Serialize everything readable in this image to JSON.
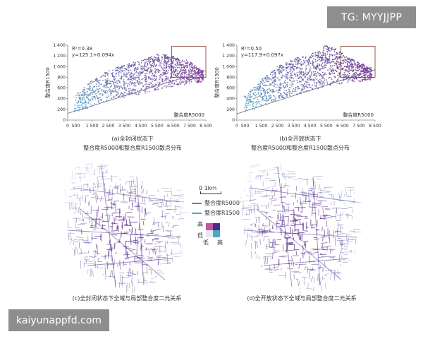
{
  "watermarks": {
    "tg": "TG: MYYJJPP",
    "site": "kaiyunappfd.com"
  },
  "captions": {
    "a_line1": "(a)全封闭状态下",
    "a_line2": "整合度R5000和整合度R1500散点分布",
    "b_line1": "(b)全开放状态下",
    "b_line2": "整合度R5000和整合度R1500散点分布",
    "c": "(c)全封闭状态下全域与局部整合度二元关系",
    "d": "(d)全开放状态下全域与局部整合度二元关系"
  },
  "legend": {
    "scale": "0   1km",
    "r5000": "整合度R5000",
    "r1500": "整合度R1500",
    "high": "高",
    "low": "低",
    "low_x": "低",
    "high_x": "高",
    "colors": {
      "r5000": "#c2569f",
      "r1500": "#4aa8c6",
      "dark": "#4a2d8e",
      "light": "#e8e8f2"
    }
  },
  "chart_data": [
    {
      "type": "scatter",
      "id": "a",
      "xlabel": "整合度R5000",
      "ylabel": "整合度R1500",
      "xlim": [
        0,
        8500
      ],
      "ylim": [
        0,
        1400
      ],
      "xticks": [
        0,
        500,
        1500,
        2500,
        3500,
        4500,
        5500,
        6500,
        7500,
        8500
      ],
      "xtick_labels": [
        "0",
        "500",
        "1 500",
        "2 500",
        "3 500",
        "4 500",
        "5 500",
        "6 500",
        "7 500",
        "8 500"
      ],
      "yticks": [
        0,
        200,
        400,
        600,
        800,
        1000,
        1200,
        1400
      ],
      "ytick_labels": [
        "0",
        "200",
        "400",
        "600",
        "800",
        "1 000",
        "1 200",
        "1 400"
      ],
      "r2": "R²=0.38",
      "equation": "y=125.1+0.094x",
      "fit": {
        "intercept": 125.1,
        "slope": 0.094
      },
      "highlight_box": {
        "x": [
          6400,
          8500
        ],
        "y": [
          800,
          1380
        ]
      },
      "point_seed": 11,
      "spread": 0.9,
      "series": [
        {
          "values_x": [
            500,
            1000,
            1500,
            2000,
            2500,
            3000,
            3500,
            4000,
            4500,
            5000,
            5500,
            6000,
            6500,
            7000,
            7500,
            8000,
            8300
          ],
          "values_y_low": [
            150,
            200,
            250,
            300,
            350,
            380,
            420,
            450,
            480,
            520,
            560,
            600,
            620,
            650,
            680,
            700,
            720
          ],
          "values_y_high": [
            500,
            650,
            800,
            900,
            1000,
            1050,
            1100,
            1150,
            1180,
            1250,
            1300,
            1300,
            1250,
            1200,
            1150,
            1000,
            950
          ]
        }
      ]
    },
    {
      "type": "scatter",
      "id": "b",
      "xlabel": "整合度R5000",
      "ylabel": "整合度R1500",
      "xlim": [
        0,
        8500
      ],
      "ylim": [
        0,
        1400
      ],
      "xticks": [
        0,
        500,
        1500,
        2500,
        3500,
        4500,
        5500,
        6500,
        7500,
        8500
      ],
      "xtick_labels": [
        "0",
        "500",
        "1 500",
        "2 500",
        "3 500",
        "4 500",
        "5 500",
        "6 500",
        "7 500",
        "8 500"
      ],
      "yticks": [
        0,
        200,
        400,
        600,
        800,
        1000,
        1200,
        1400
      ],
      "ytick_labels": [
        "0",
        "200",
        "400",
        "600",
        "800",
        "1 000",
        "1 200",
        "1 400"
      ],
      "r2": "R²=0.50",
      "equation": "y=117.9+0.097x",
      "fit": {
        "intercept": 117.9,
        "slope": 0.097
      },
      "highlight_box": {
        "x": [
          6400,
          8500
        ],
        "y": [
          800,
          1380
        ]
      },
      "point_seed": 29,
      "spread": 1.0,
      "series": [
        {
          "values_x": [
            500,
            1000,
            1500,
            2000,
            2500,
            3000,
            3500,
            4000,
            4500,
            5000,
            5500,
            6000,
            6500,
            7000,
            7500,
            8000,
            8300
          ],
          "values_y_low": [
            150,
            200,
            260,
            320,
            380,
            420,
            460,
            500,
            540,
            580,
            620,
            650,
            680,
            700,
            720,
            740,
            760
          ],
          "values_y_high": [
            450,
            600,
            750,
            900,
            1000,
            1080,
            1150,
            1200,
            1230,
            1300,
            1400,
            1350,
            1250,
            1150,
            1100,
            1000,
            980
          ]
        }
      ]
    }
  ]
}
